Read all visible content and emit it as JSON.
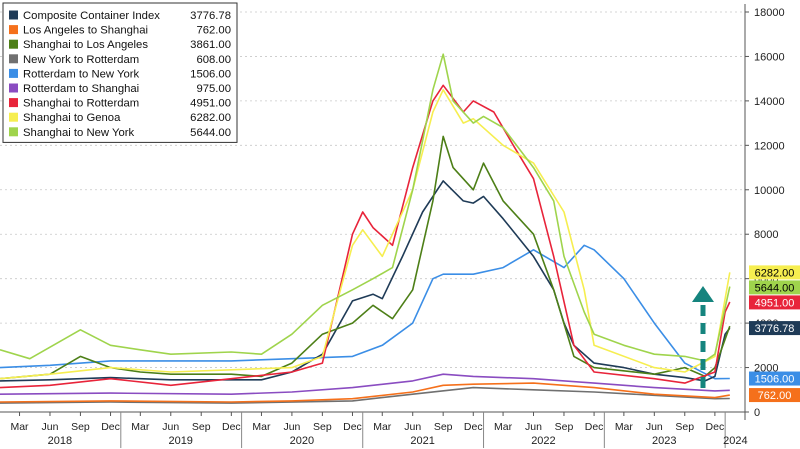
{
  "chart_data": {
    "type": "line",
    "title": "",
    "xlabel": "",
    "ylabel": "",
    "x_start": "2018-01",
    "x_end": "2024-03",
    "ylim": [
      0,
      18000
    ],
    "y_ticks": [
      0,
      2000,
      4000,
      6000,
      8000,
      10000,
      12000,
      14000,
      16000,
      18000
    ],
    "y_tick_labels": [
      "0",
      "2000",
      "4000",
      "6000",
      "8000",
      "10000",
      "12000",
      "14000",
      "16000",
      "18000"
    ],
    "grid": "horizontal dotted",
    "legend_position": "top-left",
    "x_tick_labels": [
      {
        "label": "Mar",
        "date": "2018-03"
      },
      {
        "label": "Jun",
        "date": "2018-06"
      },
      {
        "label": "Sep",
        "date": "2018-09"
      },
      {
        "label": "Dec",
        "date": "2018-12"
      },
      {
        "label": "Mar",
        "date": "2019-03"
      },
      {
        "label": "Jun",
        "date": "2019-06"
      },
      {
        "label": "Sep",
        "date": "2019-09"
      },
      {
        "label": "Dec",
        "date": "2019-12"
      },
      {
        "label": "Mar",
        "date": "2020-03"
      },
      {
        "label": "Jun",
        "date": "2020-06"
      },
      {
        "label": "Sep",
        "date": "2020-09"
      },
      {
        "label": "Dec",
        "date": "2020-12"
      },
      {
        "label": "Mar",
        "date": "2021-03"
      },
      {
        "label": "Jun",
        "date": "2021-06"
      },
      {
        "label": "Sep",
        "date": "2021-09"
      },
      {
        "label": "Dec",
        "date": "2021-12"
      },
      {
        "label": "Mar",
        "date": "2022-03"
      },
      {
        "label": "Jun",
        "date": "2022-06"
      },
      {
        "label": "Sep",
        "date": "2022-09"
      },
      {
        "label": "Dec",
        "date": "2022-12"
      },
      {
        "label": "Mar",
        "date": "2023-03"
      },
      {
        "label": "Jun",
        "date": "2023-06"
      },
      {
        "label": "Sep",
        "date": "2023-09"
      },
      {
        "label": "Dec",
        "date": "2023-12"
      }
    ],
    "year_labels": [
      {
        "label": "2018",
        "date": "2018-07"
      },
      {
        "label": "2019",
        "date": "2019-07"
      },
      {
        "label": "2020",
        "date": "2020-07"
      },
      {
        "label": "2021",
        "date": "2021-07"
      },
      {
        "label": "2022",
        "date": "2022-07"
      },
      {
        "label": "2023",
        "date": "2023-07"
      },
      {
        "label": "2024",
        "date": "2024-02"
      }
    ],
    "series": [
      {
        "name": "Composite Container Index",
        "last": "3776.78",
        "last_value": 3776.78,
        "color": "#1f3b57",
        "badge_text": "#ffffff",
        "points": [
          [
            "2018-01",
            1400
          ],
          [
            "2018-06",
            1450
          ],
          [
            "2018-12",
            1550
          ],
          [
            "2019-06",
            1450
          ],
          [
            "2019-12",
            1450
          ],
          [
            "2020-03",
            1450
          ],
          [
            "2020-06",
            1800
          ],
          [
            "2020-09",
            2600
          ],
          [
            "2020-12",
            5000
          ],
          [
            "2021-02",
            5300
          ],
          [
            "2021-03",
            5100
          ],
          [
            "2021-05",
            7000
          ],
          [
            "2021-07",
            9000
          ],
          [
            "2021-09",
            10400
          ],
          [
            "2021-11",
            9500
          ],
          [
            "2021-12",
            9400
          ],
          [
            "2022-01",
            9700
          ],
          [
            "2022-03",
            8700
          ],
          [
            "2022-06",
            7000
          ],
          [
            "2022-08",
            5500
          ],
          [
            "2022-09",
            4000
          ],
          [
            "2022-10",
            3000
          ],
          [
            "2022-12",
            2200
          ],
          [
            "2023-03",
            2000
          ],
          [
            "2023-06",
            1700
          ],
          [
            "2023-09",
            1550
          ],
          [
            "2023-11",
            1400
          ],
          [
            "2023-12",
            1600
          ],
          [
            "2024-01",
            3500
          ],
          [
            "2024-01-15",
            3776.78
          ]
        ]
      },
      {
        "name": "Los Angeles to Shanghai",
        "last": "762.00",
        "last_value": 762.0,
        "color": "#f5701b",
        "badge_text": "#ffffff",
        "points": [
          [
            "2018-01",
            450
          ],
          [
            "2018-12",
            500
          ],
          [
            "2019-12",
            450
          ],
          [
            "2020-06",
            500
          ],
          [
            "2020-12",
            600
          ],
          [
            "2021-06",
            900
          ],
          [
            "2021-09",
            1200
          ],
          [
            "2021-12",
            1250
          ],
          [
            "2022-06",
            1300
          ],
          [
            "2022-12",
            1100
          ],
          [
            "2023-06",
            800
          ],
          [
            "2023-12",
            650
          ],
          [
            "2024-01-15",
            762
          ]
        ]
      },
      {
        "name": "Shanghai to Los Angeles",
        "last": "3861.00",
        "last_value": 3861.0,
        "color": "#4d7f17",
        "badge_text": "#ffffff",
        "points": [
          [
            "2018-01",
            1500
          ],
          [
            "2018-06",
            1700
          ],
          [
            "2018-09",
            2500
          ],
          [
            "2018-12",
            2000
          ],
          [
            "2019-03",
            1800
          ],
          [
            "2019-06",
            1700
          ],
          [
            "2019-12",
            1700
          ],
          [
            "2020-03",
            1600
          ],
          [
            "2020-06",
            2200
          ],
          [
            "2020-09",
            3500
          ],
          [
            "2020-12",
            4000
          ],
          [
            "2021-02",
            4800
          ],
          [
            "2021-04",
            4200
          ],
          [
            "2021-06",
            5500
          ],
          [
            "2021-08",
            9500
          ],
          [
            "2021-09",
            12400
          ],
          [
            "2021-10",
            11000
          ],
          [
            "2021-12",
            10000
          ],
          [
            "2022-01",
            11200
          ],
          [
            "2022-03",
            9500
          ],
          [
            "2022-06",
            8000
          ],
          [
            "2022-08",
            5500
          ],
          [
            "2022-10",
            2500
          ],
          [
            "2022-12",
            2000
          ],
          [
            "2023-06",
            1700
          ],
          [
            "2023-09",
            2000
          ],
          [
            "2023-11",
            1600
          ],
          [
            "2023-12",
            2000
          ],
          [
            "2024-01-15",
            3861
          ]
        ]
      },
      {
        "name": "New York to Rotterdam",
        "last": "608.00",
        "last_value": 608.0,
        "color": "#707070",
        "badge_text": "#ffffff",
        "points": [
          [
            "2018-01",
            400
          ],
          [
            "2018-12",
            450
          ],
          [
            "2019-12",
            400
          ],
          [
            "2020-12",
            500
          ],
          [
            "2021-06",
            800
          ],
          [
            "2021-12",
            1100
          ],
          [
            "2022-06",
            1000
          ],
          [
            "2022-12",
            900
          ],
          [
            "2023-06",
            750
          ],
          [
            "2023-12",
            600
          ],
          [
            "2024-01-15",
            608
          ]
        ]
      },
      {
        "name": "Rotterdam to New York",
        "last": "1506.00",
        "last_value": 1506.0,
        "color": "#3b8ee6",
        "badge_text": "#ffffff",
        "points": [
          [
            "2018-01",
            2000
          ],
          [
            "2018-06",
            2100
          ],
          [
            "2018-12",
            2300
          ],
          [
            "2019-06",
            2300
          ],
          [
            "2019-12",
            2300
          ],
          [
            "2020-06",
            2400
          ],
          [
            "2020-12",
            2500
          ],
          [
            "2021-03",
            3000
          ],
          [
            "2021-06",
            4000
          ],
          [
            "2021-08",
            6000
          ],
          [
            "2021-09",
            6200
          ],
          [
            "2021-12",
            6200
          ],
          [
            "2022-03",
            6500
          ],
          [
            "2022-06",
            7300
          ],
          [
            "2022-09",
            6500
          ],
          [
            "2022-11",
            7500
          ],
          [
            "2022-12",
            7300
          ],
          [
            "2023-03",
            6000
          ],
          [
            "2023-06",
            4000
          ],
          [
            "2023-09",
            2200
          ],
          [
            "2023-12",
            1500
          ],
          [
            "2024-01-15",
            1506
          ]
        ]
      },
      {
        "name": "Rotterdam to Shanghai",
        "last": "975.00",
        "last_value": 975.0,
        "color": "#8a4cc1",
        "badge_text": "#ffffff",
        "points": [
          [
            "2018-01",
            800
          ],
          [
            "2018-12",
            850
          ],
          [
            "2019-12",
            800
          ],
          [
            "2020-06",
            900
          ],
          [
            "2020-12",
            1100
          ],
          [
            "2021-06",
            1400
          ],
          [
            "2021-09",
            1700
          ],
          [
            "2021-12",
            1600
          ],
          [
            "2022-06",
            1500
          ],
          [
            "2022-12",
            1300
          ],
          [
            "2023-06",
            1100
          ],
          [
            "2023-12",
            950
          ],
          [
            "2024-01-15",
            975
          ]
        ]
      },
      {
        "name": "Shanghai to Rotterdam",
        "last": "4951.00",
        "last_value": 4951.0,
        "color": "#e8243a",
        "badge_text": "#ffffff",
        "points": [
          [
            "2018-01",
            1100
          ],
          [
            "2018-06",
            1200
          ],
          [
            "2018-12",
            1500
          ],
          [
            "2019-06",
            1200
          ],
          [
            "2019-12",
            1500
          ],
          [
            "2020-06",
            1800
          ],
          [
            "2020-09",
            2200
          ],
          [
            "2020-12",
            8000
          ],
          [
            "2021-01",
            9000
          ],
          [
            "2021-02",
            8300
          ],
          [
            "2021-04",
            7500
          ],
          [
            "2021-06",
            11000
          ],
          [
            "2021-08",
            14000
          ],
          [
            "2021-09",
            14700
          ],
          [
            "2021-11",
            13500
          ],
          [
            "2021-12",
            14000
          ],
          [
            "2022-02",
            13500
          ],
          [
            "2022-04",
            12000
          ],
          [
            "2022-06",
            10500
          ],
          [
            "2022-08",
            7000
          ],
          [
            "2022-10",
            3000
          ],
          [
            "2022-12",
            1800
          ],
          [
            "2023-06",
            1500
          ],
          [
            "2023-09",
            1300
          ],
          [
            "2023-12",
            1800
          ],
          [
            "2024-01",
            4500
          ],
          [
            "2024-01-15",
            4951
          ]
        ]
      },
      {
        "name": "Shanghai to Genoa",
        "last": "6282.00",
        "last_value": 6282.0,
        "color": "#f6ee50",
        "badge_text": "#000000",
        "points": [
          [
            "2018-01",
            1500
          ],
          [
            "2018-06",
            1700
          ],
          [
            "2018-12",
            2000
          ],
          [
            "2019-06",
            1800
          ],
          [
            "2019-12",
            1900
          ],
          [
            "2020-06",
            2000
          ],
          [
            "2020-09",
            2500
          ],
          [
            "2020-12",
            7500
          ],
          [
            "2021-01",
            8200
          ],
          [
            "2021-03",
            7000
          ],
          [
            "2021-06",
            10000
          ],
          [
            "2021-08",
            13500
          ],
          [
            "2021-09",
            14500
          ],
          [
            "2021-11",
            13000
          ],
          [
            "2021-12",
            13200
          ],
          [
            "2022-03",
            12000
          ],
          [
            "2022-06",
            11200
          ],
          [
            "2022-09",
            9000
          ],
          [
            "2022-11",
            5500
          ],
          [
            "2022-12",
            3000
          ],
          [
            "2023-06",
            2000
          ],
          [
            "2023-09",
            1800
          ],
          [
            "2023-12",
            2500
          ],
          [
            "2024-01-15",
            6282
          ]
        ]
      },
      {
        "name": "Shanghai to New York",
        "last": "5644.00",
        "last_value": 5644.0,
        "color": "#9fd44c",
        "badge_text": "#000000",
        "points": [
          [
            "2018-01",
            2800
          ],
          [
            "2018-04",
            2400
          ],
          [
            "2018-09",
            3700
          ],
          [
            "2018-12",
            3000
          ],
          [
            "2019-03",
            2800
          ],
          [
            "2019-06",
            2600
          ],
          [
            "2019-12",
            2700
          ],
          [
            "2020-03",
            2600
          ],
          [
            "2020-06",
            3500
          ],
          [
            "2020-09",
            4800
          ],
          [
            "2020-12",
            5500
          ],
          [
            "2021-02",
            6000
          ],
          [
            "2021-04",
            6500
          ],
          [
            "2021-06",
            10000
          ],
          [
            "2021-08",
            14500
          ],
          [
            "2021-09",
            16100
          ],
          [
            "2021-10",
            14000
          ],
          [
            "2021-12",
            13000
          ],
          [
            "2022-01",
            13300
          ],
          [
            "2022-03",
            12800
          ],
          [
            "2022-06",
            11000
          ],
          [
            "2022-08",
            9500
          ],
          [
            "2022-09",
            7000
          ],
          [
            "2022-11",
            4500
          ],
          [
            "2022-12",
            3500
          ],
          [
            "2023-03",
            3000
          ],
          [
            "2023-06",
            2600
          ],
          [
            "2023-09",
            2500
          ],
          [
            "2023-11",
            2300
          ],
          [
            "2023-12",
            2600
          ],
          [
            "2024-01-15",
            5644
          ]
        ]
      }
    ]
  }
}
